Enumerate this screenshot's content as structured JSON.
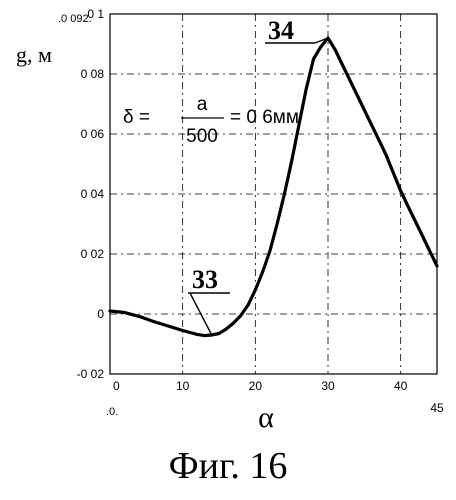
{
  "chart_data": {
    "type": "line",
    "ylabel": "g, м",
    "xlabel": "α",
    "xlim": [
      0,
      45
    ],
    "ylim": [
      -0.02,
      0.1
    ],
    "x_ticks": [
      "0",
      "10",
      "20",
      "30",
      "40",
      "45"
    ],
    "y_ticks": [
      "0 1",
      "0 08",
      "0 06",
      "0 04",
      "0 02",
      "0",
      "-0 02"
    ],
    "y_top_label": ".0 092.",
    "x_start_label": ".0.",
    "grid": true,
    "series": [
      {
        "x": [
          0,
          2,
          4,
          6,
          8,
          10,
          12,
          13,
          14,
          15,
          16,
          17,
          18,
          19,
          20,
          21,
          22,
          23,
          24,
          25,
          26,
          27,
          28,
          29,
          30,
          31,
          32,
          33,
          34,
          35,
          36,
          37,
          38,
          39,
          40,
          41,
          42,
          43,
          44,
          45
        ],
        "values": [
          0.001,
          0.0005,
          -0.0008,
          -0.0025,
          -0.004,
          -0.0055,
          -0.0068,
          -0.0072,
          -0.007,
          -0.0065,
          -0.005,
          -0.003,
          -0.0005,
          0.003,
          0.008,
          0.014,
          0.021,
          0.03,
          0.04,
          0.051,
          0.063,
          0.075,
          0.085,
          0.089,
          0.092,
          0.088,
          0.083,
          0.078,
          0.073,
          0.068,
          0.063,
          0.058,
          0.053,
          0.047,
          0.041,
          0.036,
          0.031,
          0.026,
          0.021,
          0.016
        ]
      }
    ],
    "annotations": [
      {
        "label": "33",
        "x": 14,
        "y": -0.007
      },
      {
        "label": "34",
        "x": 30,
        "y": 0.092
      }
    ],
    "formula": {
      "lhs": "δ =",
      "numerator": "a",
      "denominator": "500",
      "rhs": "= 0 6мм"
    }
  },
  "caption": "Фиг. 16"
}
